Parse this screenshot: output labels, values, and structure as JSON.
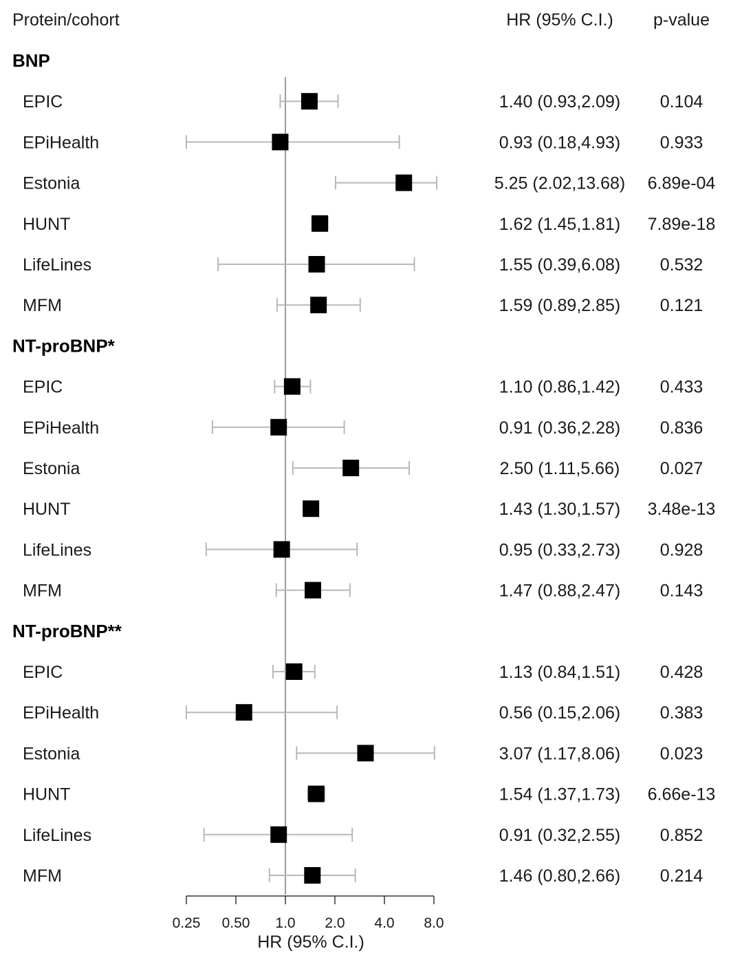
{
  "chart_data": {
    "type": "forest",
    "headers": {
      "label": "Protein/cohort",
      "estimate": "HR (95% C.I.)",
      "pvalue": "p-value"
    },
    "xlabel": "HR (95% C.I.)",
    "x_scale": "log2",
    "xlim": [
      0.25,
      8.0
    ],
    "x_ticks": [
      0.25,
      0.5,
      1.0,
      2.0,
      4.0,
      8.0
    ],
    "x_tick_labels": [
      "0.25",
      "0.50",
      "1.0",
      "2.0",
      "4.0",
      "8.0"
    ],
    "reference_line": 1.0,
    "colors": {
      "point": "#000000",
      "ci": "#b8b8b8",
      "reference": "#9a9a9a",
      "axis": "#333333"
    },
    "groups": [
      {
        "name": "BNP",
        "rows": [
          {
            "cohort": "EPIC",
            "hr": 1.4,
            "lo": 0.93,
            "hi": 2.09,
            "hr_text": "1.40 (0.93,2.09)",
            "p": "0.104"
          },
          {
            "cohort": "EPiHealth",
            "hr": 0.93,
            "lo": 0.18,
            "hi": 4.93,
            "hr_text": "0.93 (0.18,4.93)",
            "p": "0.933"
          },
          {
            "cohort": "Estonia",
            "hr": 5.25,
            "lo": 2.02,
            "hi": 13.68,
            "hr_text": "5.25 (2.02,13.68)",
            "p": "6.89e-04"
          },
          {
            "cohort": "HUNT",
            "hr": 1.62,
            "lo": 1.45,
            "hi": 1.81,
            "hr_text": "1.62 (1.45,1.81)",
            "p": "7.89e-18"
          },
          {
            "cohort": "LifeLines",
            "hr": 1.55,
            "lo": 0.39,
            "hi": 6.08,
            "hr_text": "1.55 (0.39,6.08)",
            "p": "0.532"
          },
          {
            "cohort": "MFM",
            "hr": 1.59,
            "lo": 0.89,
            "hi": 2.85,
            "hr_text": "1.59 (0.89,2.85)",
            "p": "0.121"
          }
        ]
      },
      {
        "name": "NT-proBNP*",
        "rows": [
          {
            "cohort": "EPIC",
            "hr": 1.1,
            "lo": 0.86,
            "hi": 1.42,
            "hr_text": "1.10 (0.86,1.42)",
            "p": "0.433"
          },
          {
            "cohort": "EPiHealth",
            "hr": 0.91,
            "lo": 0.36,
            "hi": 2.28,
            "hr_text": "0.91 (0.36,2.28)",
            "p": "0.836"
          },
          {
            "cohort": "Estonia",
            "hr": 2.5,
            "lo": 1.11,
            "hi": 5.66,
            "hr_text": "2.50 (1.11,5.66)",
            "p": "0.027"
          },
          {
            "cohort": "HUNT",
            "hr": 1.43,
            "lo": 1.3,
            "hi": 1.57,
            "hr_text": "1.43 (1.30,1.57)",
            "p": "3.48e-13"
          },
          {
            "cohort": "LifeLines",
            "hr": 0.95,
            "lo": 0.33,
            "hi": 2.73,
            "hr_text": "0.95 (0.33,2.73)",
            "p": "0.928"
          },
          {
            "cohort": "MFM",
            "hr": 1.47,
            "lo": 0.88,
            "hi": 2.47,
            "hr_text": "1.47 (0.88,2.47)",
            "p": "0.143"
          }
        ]
      },
      {
        "name": "NT-proBNP**",
        "rows": [
          {
            "cohort": "EPIC",
            "hr": 1.13,
            "lo": 0.84,
            "hi": 1.51,
            "hr_text": "1.13 (0.84,1.51)",
            "p": "0.428"
          },
          {
            "cohort": "EPiHealth",
            "hr": 0.56,
            "lo": 0.15,
            "hi": 2.06,
            "hr_text": "0.56 (0.15,2.06)",
            "p": "0.383"
          },
          {
            "cohort": "Estonia",
            "hr": 3.07,
            "lo": 1.17,
            "hi": 8.06,
            "hr_text": "3.07 (1.17,8.06)",
            "p": "0.023"
          },
          {
            "cohort": "HUNT",
            "hr": 1.54,
            "lo": 1.37,
            "hi": 1.73,
            "hr_text": "1.54 (1.37,1.73)",
            "p": "6.66e-13"
          },
          {
            "cohort": "LifeLines",
            "hr": 0.91,
            "lo": 0.32,
            "hi": 2.55,
            "hr_text": "0.91 (0.32,2.55)",
            "p": "0.852"
          },
          {
            "cohort": "MFM",
            "hr": 1.46,
            "lo": 0.8,
            "hi": 2.66,
            "hr_text": "1.46 (0.80,2.66)",
            "p": "0.214"
          }
        ]
      }
    ]
  }
}
